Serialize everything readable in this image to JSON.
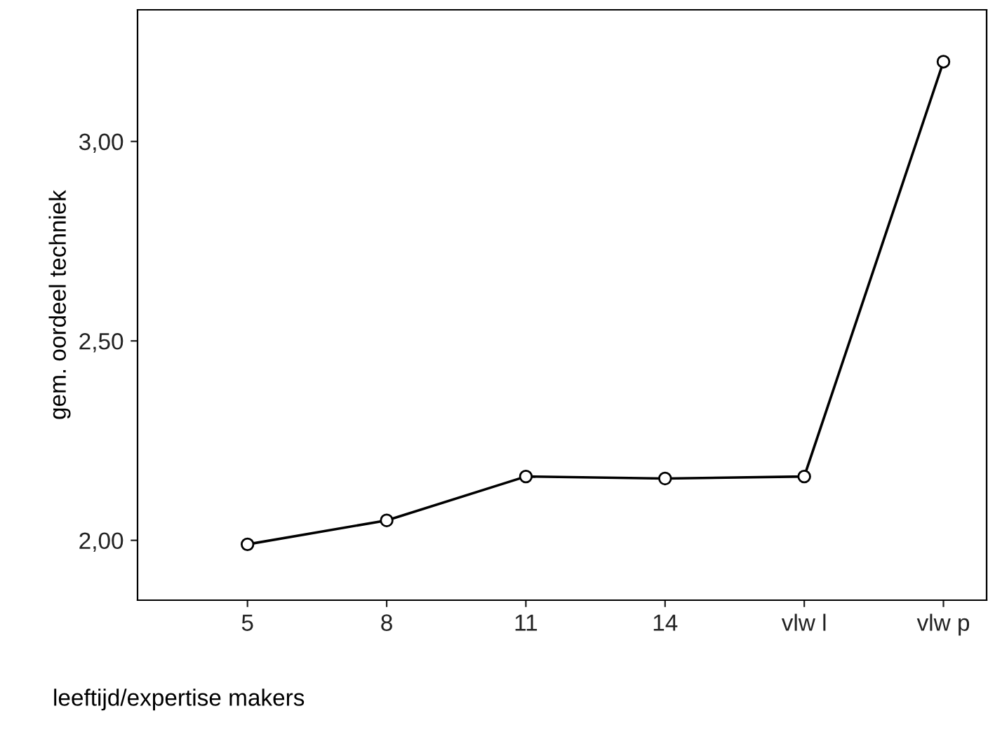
{
  "chart_data": {
    "type": "line",
    "xlabel": "leeftijd/expertise makers",
    "ylabel": "gem. oordeel techniek",
    "categories": [
      "5",
      "8",
      "11",
      "14",
      "vlw l",
      "vlw p"
    ],
    "series": [
      {
        "color": "#000000",
        "values": [
          1.99,
          2.05,
          2.16,
          2.155,
          2.16,
          3.2
        ]
      }
    ],
    "ylim": [
      1.85,
      3.33
    ],
    "yticks": [
      {
        "value": 2,
        "label": "2,00"
      },
      {
        "value": 2.5,
        "label": "2,50"
      },
      {
        "value": 3,
        "label": "3,00"
      }
    ],
    "marker": "circle",
    "line_style": "solid"
  }
}
